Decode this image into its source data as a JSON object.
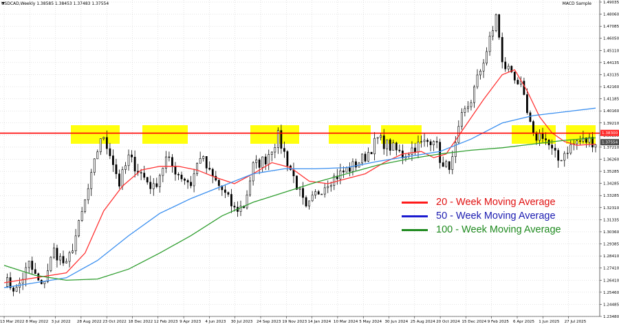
{
  "header": {
    "symbol_label": "USDCAD,Weekly  1.38585 1.38453 1.37483 1.37554",
    "indicator_label": "MACD Sample"
  },
  "colors": {
    "ma20": "#ff3333",
    "ma50": "#3a8ff0",
    "ma100": "#2f9e2f",
    "candle": "#000000",
    "zone": "#ffff00",
    "resistance": "#ff0000",
    "price_tag": "#ff2a2a",
    "current_price_tag": "#4d4d4d",
    "grid": "#c8c8c8"
  },
  "legend": [
    {
      "key": "ma20",
      "label": "20 - Week Moving Average",
      "color": "#ff1a1a",
      "text_color": "#e01010"
    },
    {
      "key": "ma50",
      "label": "50 - Week Moving Average",
      "color": "#1a1ad0",
      "text_color": "#1a1ab0"
    },
    {
      "key": "ma100",
      "label": "100 - Week Moving Average",
      "color": "#1f8a1f",
      "text_color": "#1f8a1f"
    }
  ],
  "chart_data": {
    "type": "candlestick",
    "symbol": "USDCAD",
    "timeframe": "Weekly",
    "ylim": [
      1.2348,
      1.49035
    ],
    "y_ticks": [
      "1.49035",
      "1.48060",
      "1.47085",
      "1.46050",
      "1.45110",
      "1.44135",
      "1.43135",
      "1.42160",
      "1.41185",
      "1.40160",
      "1.39210",
      "1.38235",
      "1.37210",
      "1.36260",
      "1.35285",
      "1.34285",
      "1.33285",
      "1.32310",
      "1.31335",
      "1.30360",
      "1.29385",
      "1.28410",
      "1.27410",
      "1.26410",
      "1.25460",
      "1.24485",
      "1.23480"
    ],
    "x_ticks": [
      "13 Mar 2022",
      "8 May 2022",
      "3 Jul 2022",
      "28 Aug 2022",
      "23 Oct 2022",
      "18 Dec 2022",
      "12 Feb 2023",
      "9 Apr 2023",
      "4 Jun 2023",
      "30 Jul 2023",
      "24 Sep 2023",
      "19 Nov 2023",
      "14 Jan 2024",
      "10 Mar 2024",
      "5 May 2024",
      "30 Jun 2024",
      "25 Aug 2024",
      "20 Oct 2024",
      "15 Dec 2024",
      "9 Feb 2025",
      "6 Apr 2025",
      "1 Jun 2025",
      "27 Jul 2025"
    ],
    "resistance_level": 1.3828,
    "price_tags": [
      {
        "label": "1.38300",
        "value": 1.383,
        "kind": "resistance"
      },
      {
        "label": "1.37554",
        "value": 1.37554,
        "kind": "current"
      }
    ],
    "resistance_zones": [
      {
        "from": "Aug 2022",
        "to": "Oct 2022"
      },
      {
        "from": "Dec 2022",
        "to": "Mar 2023"
      },
      {
        "from": "Sep 2023",
        "to": "Nov 2023"
      },
      {
        "from": "Mar 2024",
        "to": "Apr 2024"
      },
      {
        "from": "Jun 2024",
        "to": "Jul 2024"
      },
      {
        "from": "Apr 2025",
        "to": "May 2025"
      },
      {
        "from": "Jul 2025",
        "to": "Sep 2025"
      }
    ],
    "close_path": [
      [
        0,
        1.264
      ],
      [
        4,
        1.256
      ],
      [
        8,
        1.277
      ],
      [
        12,
        1.258
      ],
      [
        16,
        1.288
      ],
      [
        20,
        1.275
      ],
      [
        24,
        1.308
      ],
      [
        28,
        1.347
      ],
      [
        31,
        1.38
      ],
      [
        34,
        1.368
      ],
      [
        37,
        1.342
      ],
      [
        40,
        1.363
      ],
      [
        44,
        1.35
      ],
      [
        48,
        1.338
      ],
      [
        52,
        1.362
      ],
      [
        56,
        1.35
      ],
      [
        60,
        1.342
      ],
      [
        63,
        1.365
      ],
      [
        66,
        1.35
      ],
      [
        70,
        1.337
      ],
      [
        74,
        1.321
      ],
      [
        77,
        1.324
      ],
      [
        80,
        1.356
      ],
      [
        84,
        1.362
      ],
      [
        88,
        1.38
      ],
      [
        91,
        1.36
      ],
      [
        94,
        1.341
      ],
      [
        97,
        1.32
      ],
      [
        100,
        1.333
      ],
      [
        104,
        1.344
      ],
      [
        108,
        1.35
      ],
      [
        112,
        1.356
      ],
      [
        116,
        1.364
      ],
      [
        120,
        1.378
      ],
      [
        124,
        1.372
      ],
      [
        128,
        1.365
      ],
      [
        132,
        1.372
      ],
      [
        136,
        1.376
      ],
      [
        138,
        1.38
      ],
      [
        141,
        1.354
      ],
      [
        144,
        1.36
      ],
      [
        147,
        1.395
      ],
      [
        150,
        1.41
      ],
      [
        154,
        1.442
      ],
      [
        157,
        1.465
      ],
      [
        158,
        1.48
      ],
      [
        160,
        1.438
      ],
      [
        163,
        1.433
      ],
      [
        166,
        1.42
      ],
      [
        168,
        1.398
      ],
      [
        170,
        1.379
      ],
      [
        173,
        1.382
      ],
      [
        176,
        1.368
      ],
      [
        178,
        1.361
      ],
      [
        181,
        1.37
      ],
      [
        184,
        1.376
      ],
      [
        188,
        1.377
      ],
      [
        190,
        1.3755
      ]
    ],
    "moving_averages": [
      {
        "name": "20 - Week Moving Average",
        "key": "ma20",
        "points": [
          [
            0,
            1.262
          ],
          [
            10,
            1.266
          ],
          [
            20,
            1.27
          ],
          [
            26,
            1.286
          ],
          [
            32,
            1.32
          ],
          [
            38,
            1.34
          ],
          [
            44,
            1.353
          ],
          [
            50,
            1.356
          ],
          [
            56,
            1.356
          ],
          [
            62,
            1.353
          ],
          [
            68,
            1.347
          ],
          [
            74,
            1.342
          ],
          [
            80,
            1.35
          ],
          [
            86,
            1.359
          ],
          [
            92,
            1.355
          ],
          [
            98,
            1.344
          ],
          [
            104,
            1.342
          ],
          [
            110,
            1.346
          ],
          [
            116,
            1.35
          ],
          [
            122,
            1.359
          ],
          [
            128,
            1.366
          ],
          [
            134,
            1.368
          ],
          [
            138,
            1.363
          ],
          [
            142,
            1.366
          ],
          [
            148,
            1.388
          ],
          [
            154,
            1.41
          ],
          [
            160,
            1.43
          ],
          [
            164,
            1.434
          ],
          [
            168,
            1.417
          ],
          [
            172,
            1.396
          ],
          [
            176,
            1.383
          ],
          [
            180,
            1.376
          ],
          [
            184,
            1.373
          ],
          [
            190,
            1.374
          ]
        ]
      },
      {
        "name": "50 - Week Moving Average",
        "key": "ma50",
        "points": [
          [
            0,
            1.258
          ],
          [
            10,
            1.262
          ],
          [
            20,
            1.266
          ],
          [
            30,
            1.28
          ],
          [
            40,
            1.3
          ],
          [
            50,
            1.318
          ],
          [
            60,
            1.33
          ],
          [
            70,
            1.34
          ],
          [
            80,
            1.35
          ],
          [
            90,
            1.354
          ],
          [
            100,
            1.354
          ],
          [
            110,
            1.355
          ],
          [
            120,
            1.36
          ],
          [
            130,
            1.364
          ],
          [
            140,
            1.368
          ],
          [
            150,
            1.378
          ],
          [
            160,
            1.391
          ],
          [
            170,
            1.397
          ],
          [
            180,
            1.4
          ],
          [
            190,
            1.403
          ]
        ]
      },
      {
        "name": "100 - Week Moving Average",
        "key": "ma100",
        "points": [
          [
            0,
            1.276
          ],
          [
            10,
            1.268
          ],
          [
            20,
            1.264
          ],
          [
            30,
            1.265
          ],
          [
            40,
            1.273
          ],
          [
            50,
            1.286
          ],
          [
            60,
            1.3
          ],
          [
            70,
            1.316
          ],
          [
            80,
            1.327
          ],
          [
            90,
            1.335
          ],
          [
            100,
            1.343
          ],
          [
            110,
            1.35
          ],
          [
            120,
            1.357
          ],
          [
            130,
            1.362
          ],
          [
            140,
            1.366
          ],
          [
            150,
            1.369
          ],
          [
            160,
            1.371
          ],
          [
            170,
            1.374
          ],
          [
            180,
            1.377
          ],
          [
            190,
            1.379
          ]
        ]
      }
    ]
  }
}
